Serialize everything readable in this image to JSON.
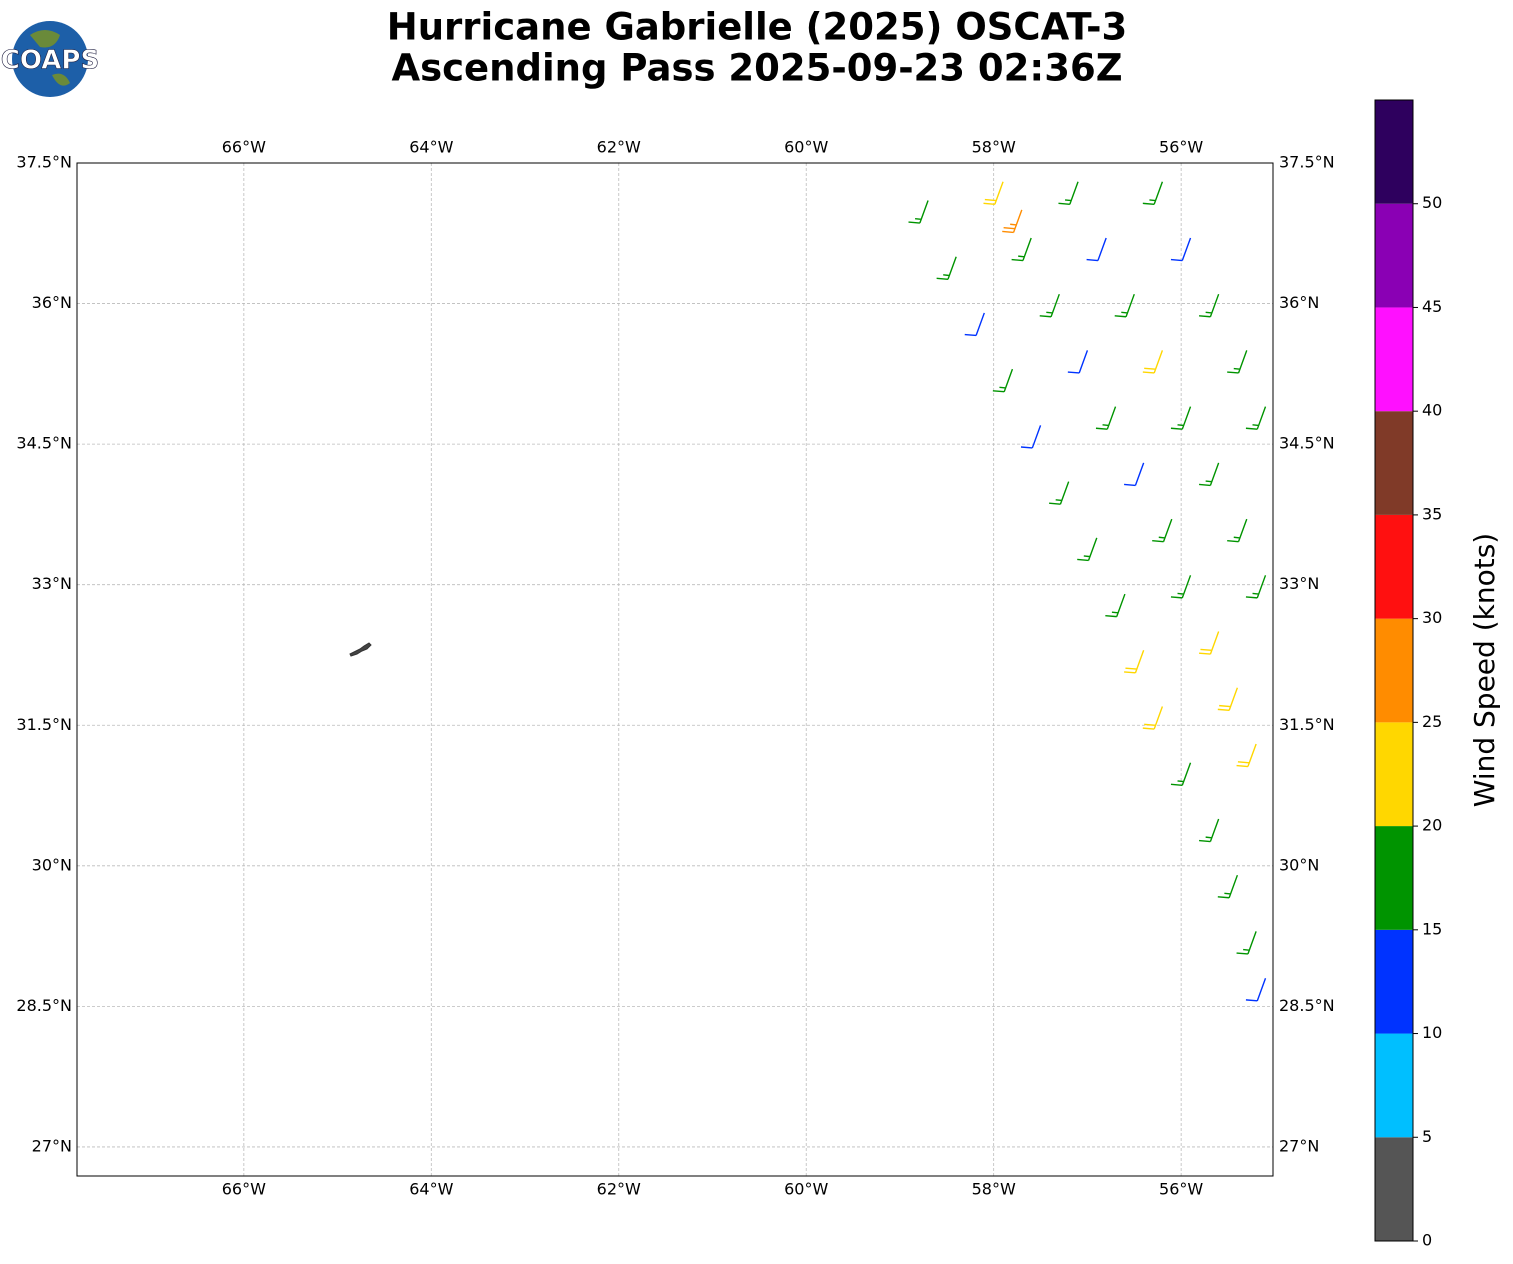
{
  "logo_text": "COAPS",
  "chart_data": {
    "type": "wind-barb-map",
    "title": "Hurricane Gabrielle (2025) OSCAT-3",
    "subtitle": "Ascending Pass 2025-09-23 02:36Z",
    "xlim": [
      -67.78,
      -55.02
    ],
    "ylim": [
      26.69,
      37.5
    ],
    "xticks": [
      {
        "value": -66,
        "label": "66°W"
      },
      {
        "value": -64,
        "label": "64°W"
      },
      {
        "value": -62,
        "label": "62°W"
      },
      {
        "value": -60,
        "label": "60°W"
      },
      {
        "value": -58,
        "label": "58°W"
      },
      {
        "value": -56,
        "label": "56°W"
      }
    ],
    "yticks": [
      {
        "value": 37.5,
        "label": "37.5°N"
      },
      {
        "value": 36,
        "label": "36°N"
      },
      {
        "value": 34.5,
        "label": "34.5°N"
      },
      {
        "value": 33,
        "label": "33°N"
      },
      {
        "value": 31.5,
        "label": "31.5°N"
      },
      {
        "value": 30,
        "label": "30°N"
      },
      {
        "value": 28.5,
        "label": "28.5°N"
      },
      {
        "value": 27,
        "label": "27°N"
      }
    ],
    "grid": true,
    "barb_direction": 200,
    "barbs": {
      "lon": [
        -58.7,
        -58.4,
        -58.1,
        -57.8,
        -57.5,
        -57.2,
        -56.9,
        -56.6,
        -56.4,
        -56.2,
        -55.9,
        -55.6,
        -55.4,
        -55.2,
        -55.1,
        -57.9,
        -57.6,
        -57.3,
        -57.0,
        -56.7,
        -56.4,
        -56.1,
        -55.9,
        -55.6,
        -55.4,
        -55.2,
        -57.1,
        -56.8,
        -56.5,
        -56.2,
        -55.9,
        -55.6,
        -55.3,
        -55.1,
        -56.2,
        -55.9,
        -55.6,
        -55.3,
        -55.1,
        -57.7
      ],
      "lat": [
        37.1,
        36.5,
        35.9,
        35.3,
        34.7,
        34.1,
        33.5,
        32.9,
        32.3,
        31.7,
        31.1,
        30.5,
        29.9,
        29.3,
        28.8,
        37.3,
        36.7,
        36.1,
        35.5,
        34.9,
        34.3,
        33.7,
        33.1,
        32.5,
        31.9,
        31.3,
        37.3,
        36.7,
        36.1,
        35.5,
        34.9,
        34.3,
        33.7,
        33.1,
        37.3,
        36.7,
        36.1,
        35.5,
        34.9,
        37.0
      ],
      "speed": [
        15,
        15,
        12,
        17,
        12,
        17,
        17,
        17,
        22,
        22,
        17,
        17,
        17,
        17,
        12,
        22,
        17,
        17,
        12,
        17,
        12,
        17,
        17,
        22,
        22,
        22,
        17,
        12,
        17,
        22,
        17,
        17,
        17,
        17,
        17,
        12,
        17,
        17,
        17,
        27
      ]
    },
    "colorbar": {
      "label": "Wind Speed (knots)",
      "bounds": [
        0,
        5,
        10,
        15,
        20,
        25,
        30,
        35,
        40,
        45,
        50,
        55
      ],
      "colors": [
        "#555555",
        "#00bfff",
        "#0033ff",
        "#009400",
        "#ffd700",
        "#ff8c00",
        "#ff1010",
        "#803a28",
        "#ff10ff",
        "#8a00b4",
        "#2e005e"
      ],
      "ticks": [
        0,
        5,
        10,
        15,
        20,
        25,
        30,
        35,
        40,
        45,
        50
      ]
    }
  }
}
